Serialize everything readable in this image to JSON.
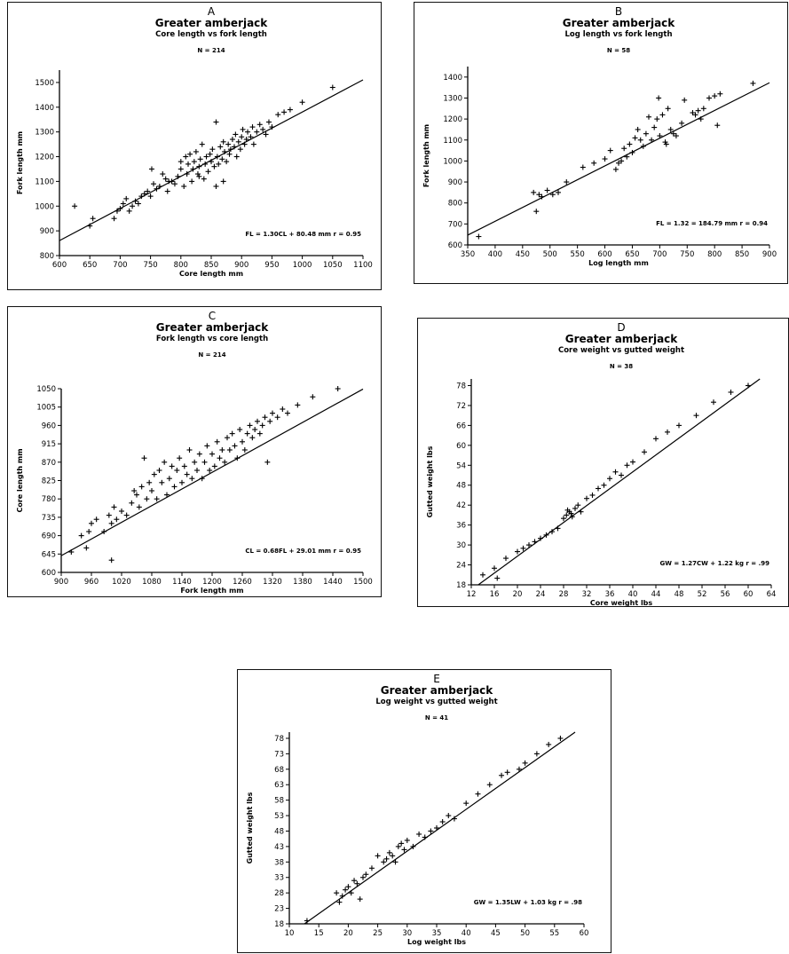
{
  "chart_data": [
    {
      "panel": "A",
      "type": "scatter",
      "title": "Greater amberjack",
      "subtitle": "Core length vs fork length",
      "n_label": "N = 214",
      "xlabel": "Core length mm",
      "ylabel": "Fork length mm",
      "equation": "FL = 1.30CL + 80.48 mm r = 0.95",
      "xlim": [
        600,
        1100
      ],
      "ylim": [
        800,
        1550
      ],
      "x_ticks": [
        600,
        650,
        700,
        750,
        800,
        850,
        900,
        950,
        1000,
        1050,
        1100
      ],
      "y_ticks": [
        800,
        900,
        1000,
        1100,
        1200,
        1300,
        1400,
        1500
      ],
      "marker": "+",
      "regression": {
        "slope": 1.3,
        "intercept": 80.48
      },
      "points": [
        [
          625,
          1000
        ],
        [
          650,
          920
        ],
        [
          655,
          950
        ],
        [
          690,
          950
        ],
        [
          695,
          980
        ],
        [
          700,
          990
        ],
        [
          705,
          1010
        ],
        [
          710,
          1030
        ],
        [
          715,
          980
        ],
        [
          720,
          1000
        ],
        [
          725,
          1020
        ],
        [
          730,
          1010
        ],
        [
          735,
          1040
        ],
        [
          740,
          1050
        ],
        [
          745,
          1060
        ],
        [
          750,
          1040
        ],
        [
          752,
          1150
        ],
        [
          755,
          1090
        ],
        [
          760,
          1070
        ],
        [
          765,
          1080
        ],
        [
          770,
          1130
        ],
        [
          775,
          1110
        ],
        [
          778,
          1060
        ],
        [
          780,
          1100
        ],
        [
          785,
          1100
        ],
        [
          790,
          1090
        ],
        [
          795,
          1120
        ],
        [
          800,
          1150
        ],
        [
          800,
          1180
        ],
        [
          805,
          1080
        ],
        [
          808,
          1200
        ],
        [
          810,
          1130
        ],
        [
          812,
          1170
        ],
        [
          815,
          1210
        ],
        [
          818,
          1100
        ],
        [
          820,
          1150
        ],
        [
          822,
          1180
        ],
        [
          825,
          1220
        ],
        [
          828,
          1130
        ],
        [
          830,
          1160
        ],
        [
          832,
          1190
        ],
        [
          835,
          1250
        ],
        [
          838,
          1110
        ],
        [
          840,
          1170
        ],
        [
          842,
          1200
        ],
        [
          845,
          1140
        ],
        [
          848,
          1210
        ],
        [
          850,
          1180
        ],
        [
          852,
          1230
        ],
        [
          855,
          1160
        ],
        [
          858,
          1080
        ],
        [
          860,
          1200
        ],
        [
          862,
          1170
        ],
        [
          865,
          1240
        ],
        [
          868,
          1190
        ],
        [
          870,
          1260
        ],
        [
          872,
          1220
        ],
        [
          875,
          1180
        ],
        [
          878,
          1250
        ],
        [
          880,
          1210
        ],
        [
          882,
          1230
        ],
        [
          885,
          1270
        ],
        [
          888,
          1240
        ],
        [
          890,
          1290
        ],
        [
          892,
          1200
        ],
        [
          895,
          1260
        ],
        [
          898,
          1230
        ],
        [
          900,
          1280
        ],
        [
          902,
          1310
        ],
        [
          905,
          1250
        ],
        [
          908,
          1270
        ],
        [
          910,
          1300
        ],
        [
          915,
          1280
        ],
        [
          918,
          1320
        ],
        [
          920,
          1250
        ],
        [
          925,
          1300
        ],
        [
          930,
          1330
        ],
        [
          935,
          1310
        ],
        [
          940,
          1290
        ],
        [
          945,
          1340
        ],
        [
          950,
          1320
        ],
        [
          960,
          1370
        ],
        [
          970,
          1380
        ],
        [
          980,
          1390
        ],
        [
          1000,
          1420
        ],
        [
          1050,
          1480
        ],
        [
          858,
          1340
        ],
        [
          830,
          1120
        ],
        [
          870,
          1100
        ]
      ]
    },
    {
      "panel": "B",
      "type": "scatter",
      "title": "Greater amberjack",
      "subtitle": "Log length vs fork length",
      "n_label": "N = 58",
      "xlabel": "Log length mm",
      "ylabel": "Fork length mm",
      "equation": "FL = 1.32 = 184.79 mm r = 0.94",
      "xlim": [
        350,
        900
      ],
      "ylim": [
        600,
        1450
      ],
      "x_ticks": [
        350,
        400,
        450,
        500,
        550,
        600,
        650,
        700,
        750,
        800,
        850,
        900
      ],
      "y_ticks": [
        600,
        700,
        800,
        900,
        1000,
        1100,
        1200,
        1300,
        1400
      ],
      "marker": "+",
      "regression": {
        "slope": 1.32,
        "intercept": 184.79
      },
      "points": [
        [
          370,
          640
        ],
        [
          470,
          850
        ],
        [
          475,
          760
        ],
        [
          480,
          840
        ],
        [
          485,
          830
        ],
        [
          495,
          860
        ],
        [
          505,
          840
        ],
        [
          515,
          850
        ],
        [
          530,
          900
        ],
        [
          560,
          970
        ],
        [
          580,
          990
        ],
        [
          600,
          1010
        ],
        [
          610,
          1050
        ],
        [
          620,
          960
        ],
        [
          625,
          990
        ],
        [
          630,
          1000
        ],
        [
          635,
          1060
        ],
        [
          640,
          1020
        ],
        [
          645,
          1080
        ],
        [
          650,
          1040
        ],
        [
          655,
          1110
        ],
        [
          660,
          1150
        ],
        [
          665,
          1100
        ],
        [
          670,
          1070
        ],
        [
          675,
          1130
        ],
        [
          680,
          1210
        ],
        [
          685,
          1100
        ],
        [
          690,
          1160
        ],
        [
          695,
          1200
        ],
        [
          698,
          1300
        ],
        [
          700,
          1120
        ],
        [
          705,
          1220
        ],
        [
          710,
          1090
        ],
        [
          712,
          1080
        ],
        [
          715,
          1250
        ],
        [
          720,
          1150
        ],
        [
          725,
          1130
        ],
        [
          730,
          1120
        ],
        [
          740,
          1180
        ],
        [
          745,
          1290
        ],
        [
          760,
          1230
        ],
        [
          765,
          1220
        ],
        [
          770,
          1240
        ],
        [
          775,
          1200
        ],
        [
          780,
          1250
        ],
        [
          790,
          1300
        ],
        [
          800,
          1310
        ],
        [
          805,
          1170
        ],
        [
          810,
          1320
        ],
        [
          870,
          1370
        ]
      ]
    },
    {
      "panel": "C",
      "type": "scatter",
      "title": "Greater amberjack",
      "subtitle": "Fork length vs core length",
      "n_label": "N = 214",
      "xlabel": "Fork length mm",
      "ylabel": "Core length mm",
      "equation": "CL = 0.68FL + 29.01 mm r = 0.95",
      "xlim": [
        900,
        1500
      ],
      "ylim": [
        600,
        1050
      ],
      "x_ticks": [
        900,
        960,
        1020,
        1080,
        1140,
        1200,
        1260,
        1320,
        1380,
        1440,
        1500
      ],
      "y_ticks": [
        600,
        645,
        690,
        735,
        780,
        825,
        870,
        915,
        960,
        1005,
        1050
      ],
      "marker": "+",
      "regression": {
        "slope": 0.68,
        "intercept": 29.01
      },
      "points": [
        [
          920,
          650
        ],
        [
          940,
          690
        ],
        [
          950,
          660
        ],
        [
          955,
          700
        ],
        [
          960,
          720
        ],
        [
          970,
          730
        ],
        [
          985,
          700
        ],
        [
          995,
          740
        ],
        [
          1000,
          630
        ],
        [
          1000,
          720
        ],
        [
          1005,
          760
        ],
        [
          1010,
          730
        ],
        [
          1020,
          750
        ],
        [
          1030,
          740
        ],
        [
          1040,
          770
        ],
        [
          1045,
          800
        ],
        [
          1050,
          790
        ],
        [
          1055,
          760
        ],
        [
          1060,
          810
        ],
        [
          1065,
          880
        ],
        [
          1070,
          780
        ],
        [
          1075,
          820
        ],
        [
          1080,
          800
        ],
        [
          1085,
          840
        ],
        [
          1090,
          780
        ],
        [
          1095,
          850
        ],
        [
          1100,
          820
        ],
        [
          1105,
          870
        ],
        [
          1110,
          790
        ],
        [
          1115,
          830
        ],
        [
          1120,
          860
        ],
        [
          1125,
          810
        ],
        [
          1130,
          850
        ],
        [
          1135,
          880
        ],
        [
          1140,
          820
        ],
        [
          1145,
          860
        ],
        [
          1150,
          840
        ],
        [
          1155,
          900
        ],
        [
          1160,
          830
        ],
        [
          1165,
          870
        ],
        [
          1170,
          850
        ],
        [
          1175,
          890
        ],
        [
          1180,
          830
        ],
        [
          1185,
          870
        ],
        [
          1190,
          910
        ],
        [
          1195,
          850
        ],
        [
          1200,
          890
        ],
        [
          1205,
          860
        ],
        [
          1210,
          920
        ],
        [
          1215,
          880
        ],
        [
          1220,
          900
        ],
        [
          1225,
          870
        ],
        [
          1230,
          930
        ],
        [
          1235,
          900
        ],
        [
          1240,
          940
        ],
        [
          1245,
          910
        ],
        [
          1250,
          880
        ],
        [
          1255,
          950
        ],
        [
          1260,
          920
        ],
        [
          1265,
          900
        ],
        [
          1270,
          940
        ],
        [
          1275,
          960
        ],
        [
          1280,
          930
        ],
        [
          1285,
          950
        ],
        [
          1290,
          970
        ],
        [
          1295,
          940
        ],
        [
          1300,
          960
        ],
        [
          1305,
          980
        ],
        [
          1310,
          870
        ],
        [
          1315,
          970
        ],
        [
          1320,
          990
        ],
        [
          1330,
          980
        ],
        [
          1340,
          1000
        ],
        [
          1350,
          990
        ],
        [
          1370,
          1010
        ],
        [
          1400,
          1030
        ],
        [
          1450,
          1050
        ]
      ]
    },
    {
      "panel": "D",
      "type": "scatter",
      "title": "Greater amberjack",
      "subtitle": "Core weight vs gutted weight",
      "n_label": "N = 38",
      "xlabel": "Core weight lbs",
      "ylabel": "Gutted weight lbs",
      "equation": "GW = 1.27CW + 1.22 kg r = .99",
      "xlim": [
        12,
        64
      ],
      "ylim": [
        18,
        80
      ],
      "x_ticks": [
        12,
        16,
        20,
        24,
        28,
        32,
        36,
        40,
        44,
        48,
        52,
        56,
        60,
        64
      ],
      "y_ticks": [
        18,
        24,
        30,
        36,
        42,
        48,
        54,
        60,
        66,
        72,
        78
      ],
      "marker": "+",
      "regression": {
        "slope": 1.27,
        "intercept": 1.22
      },
      "points": [
        [
          14,
          21
        ],
        [
          16,
          23
        ],
        [
          18,
          26
        ],
        [
          20,
          28
        ],
        [
          21,
          29
        ],
        [
          22,
          30
        ],
        [
          23,
          31
        ],
        [
          24,
          32
        ],
        [
          25,
          33
        ],
        [
          26,
          34
        ],
        [
          27,
          35
        ],
        [
          28,
          38
        ],
        [
          28.5,
          39
        ],
        [
          29,
          40
        ],
        [
          29.3,
          39.5
        ],
        [
          28.7,
          40.5
        ],
        [
          29.5,
          38.5
        ],
        [
          30,
          41
        ],
        [
          30.5,
          42
        ],
        [
          31,
          40
        ],
        [
          32,
          44
        ],
        [
          33,
          45
        ],
        [
          34,
          47
        ],
        [
          35,
          48
        ],
        [
          36,
          50
        ],
        [
          37,
          52
        ],
        [
          38,
          51
        ],
        [
          39,
          54
        ],
        [
          40,
          55
        ],
        [
          42,
          58
        ],
        [
          44,
          62
        ],
        [
          46,
          64
        ],
        [
          48,
          66
        ],
        [
          51,
          69
        ],
        [
          54,
          73
        ],
        [
          57,
          76
        ],
        [
          60,
          78
        ],
        [
          16.5,
          20
        ]
      ]
    },
    {
      "panel": "E",
      "type": "scatter",
      "title": "Greater amberjack",
      "subtitle": "Log weight vs gutted weight",
      "n_label": "N = 41",
      "xlabel": "Log weight lbs",
      "ylabel": "Gutted weight lbs",
      "equation": "GW = 1.35LW + 1.03 kg r = .98",
      "xlim": [
        10,
        60
      ],
      "ylim": [
        18,
        80
      ],
      "x_ticks": [
        10,
        15,
        20,
        25,
        30,
        35,
        40,
        45,
        50,
        55,
        60
      ],
      "y_ticks": [
        18,
        23,
        28,
        33,
        38,
        43,
        48,
        53,
        58,
        63,
        68,
        73,
        78
      ],
      "marker": "+",
      "regression": {
        "slope": 1.35,
        "intercept": 1.03
      },
      "points": [
        [
          13,
          19
        ],
        [
          18,
          28
        ],
        [
          18.5,
          25
        ],
        [
          19,
          27
        ],
        [
          19.5,
          29
        ],
        [
          20,
          30
        ],
        [
          20.5,
          28
        ],
        [
          21,
          32
        ],
        [
          21.5,
          31
        ],
        [
          22,
          26
        ],
        [
          22.5,
          33
        ],
        [
          23,
          34
        ],
        [
          24,
          36
        ],
        [
          25,
          40
        ],
        [
          26,
          38
        ],
        [
          26.5,
          39
        ],
        [
          27,
          41
        ],
        [
          27.5,
          40
        ],
        [
          28,
          38
        ],
        [
          28.5,
          43
        ],
        [
          29,
          44
        ],
        [
          29.5,
          42
        ],
        [
          30,
          45
        ],
        [
          31,
          43
        ],
        [
          32,
          47
        ],
        [
          33,
          46
        ],
        [
          34,
          48
        ],
        [
          35,
          49
        ],
        [
          36,
          51
        ],
        [
          37,
          53
        ],
        [
          38,
          52
        ],
        [
          40,
          57
        ],
        [
          42,
          60
        ],
        [
          44,
          63
        ],
        [
          46,
          66
        ],
        [
          47,
          67
        ],
        [
          49,
          68
        ],
        [
          50,
          70
        ],
        [
          52,
          73
        ],
        [
          54,
          76
        ],
        [
          56,
          78
        ]
      ]
    }
  ]
}
